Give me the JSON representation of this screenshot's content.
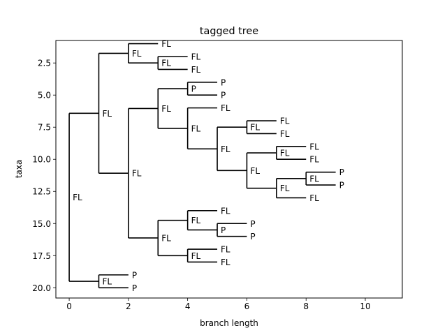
{
  "chart_data": {
    "type": "tree",
    "title": "tagged tree",
    "xlabel": "branch length",
    "ylabel": "taxa",
    "xlim": [
      -0.45,
      11.25
    ],
    "ylim": [
      20.8,
      0.75
    ],
    "xticks": [
      0,
      2,
      4,
      6,
      8,
      10
    ],
    "xtick_labels": [
      "0",
      "2",
      "4",
      "6",
      "8",
      "10"
    ],
    "yticks": [
      2.5,
      5.0,
      7.5,
      10.0,
      12.5,
      15.0,
      17.5,
      20.0
    ],
    "ytick_labels": [
      "2.5",
      "5.0",
      "7.5",
      "10.0",
      "12.5",
      "15.0",
      "17.5",
      "20.0"
    ],
    "tree": {
      "tag": "FL",
      "x": 0,
      "children": [
        {
          "tag": "FL",
          "x": 1,
          "children": [
            {
              "tag": "FL",
              "x": 2,
              "children": [
                {
                  "tag": "FL",
                  "x": 3,
                  "y": 1
                },
                {
                  "tag": "FL",
                  "x": 3,
                  "children": [
                    {
                      "tag": "FL",
                      "x": 4,
                      "y": 2
                    },
                    {
                      "tag": "FL",
                      "x": 4,
                      "y": 3
                    }
                  ]
                }
              ]
            },
            {
              "tag": "FL",
              "x": 2,
              "children": [
                {
                  "tag": "FL",
                  "x": 3,
                  "children": [
                    {
                      "tag": "P",
                      "x": 4,
                      "children": [
                        {
                          "tag": "P",
                          "x": 5,
                          "y": 4
                        },
                        {
                          "tag": "P",
                          "x": 5,
                          "y": 5
                        }
                      ]
                    },
                    {
                      "tag": "FL",
                      "x": 4,
                      "children": [
                        {
                          "tag": "FL",
                          "x": 5,
                          "y": 6
                        },
                        {
                          "tag": "FL",
                          "x": 5,
                          "children": [
                            {
                              "tag": "FL",
                              "x": 6,
                              "children": [
                                {
                                  "tag": "FL",
                                  "x": 7,
                                  "y": 7
                                },
                                {
                                  "tag": "FL",
                                  "x": 7,
                                  "y": 8
                                }
                              ]
                            },
                            {
                              "tag": "FL",
                              "x": 6,
                              "children": [
                                {
                                  "tag": "FL",
                                  "x": 7,
                                  "children": [
                                    {
                                      "tag": "FL",
                                      "x": 8,
                                      "y": 9
                                    },
                                    {
                                      "tag": "FL",
                                      "x": 8,
                                      "y": 10
                                    }
                                  ]
                                },
                                {
                                  "tag": "FL",
                                  "x": 7,
                                  "children": [
                                    {
                                      "tag": "FL",
                                      "x": 8,
                                      "children": [
                                        {
                                          "tag": "P",
                                          "x": 9,
                                          "y": 11
                                        },
                                        {
                                          "tag": "P",
                                          "x": 9,
                                          "y": 12
                                        }
                                      ]
                                    },
                                    {
                                      "tag": "FL",
                                      "x": 8,
                                      "y": 13
                                    }
                                  ]
                                }
                              ]
                            }
                          ]
                        }
                      ]
                    }
                  ]
                },
                {
                  "tag": "FL",
                  "x": 3,
                  "children": [
                    {
                      "tag": "FL",
                      "x": 4,
                      "children": [
                        {
                          "tag": "FL",
                          "x": 5,
                          "y": 14
                        },
                        {
                          "tag": "P",
                          "x": 5,
                          "children": [
                            {
                              "tag": "P",
                              "x": 6,
                              "y": 15
                            },
                            {
                              "tag": "P",
                              "x": 6,
                              "y": 16
                            }
                          ]
                        }
                      ]
                    },
                    {
                      "tag": "FL",
                      "x": 4,
                      "children": [
                        {
                          "tag": "FL",
                          "x": 5,
                          "y": 17
                        },
                        {
                          "tag": "FL",
                          "x": 5,
                          "y": 18
                        }
                      ]
                    }
                  ]
                }
              ]
            }
          ]
        },
        {
          "tag": "FL",
          "x": 1,
          "children": [
            {
              "tag": "P",
              "x": 2,
              "y": 19
            },
            {
              "tag": "P",
              "x": 2,
              "y": 20
            }
          ]
        }
      ]
    }
  }
}
